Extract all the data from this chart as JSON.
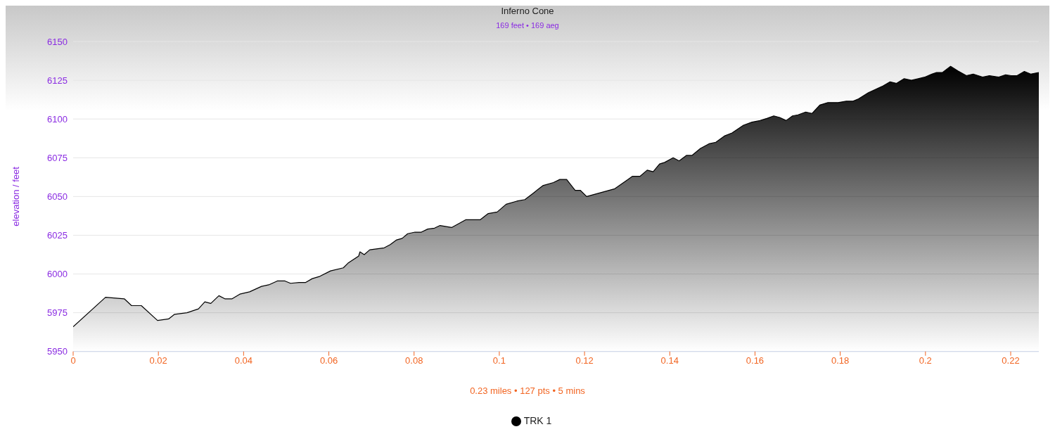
{
  "chart_data": {
    "type": "area",
    "title": "Inferno Cone",
    "subtitle": "169 feet • 169 aeg",
    "xlabel": "0.23 miles • 127 pts • 5 mins",
    "ylabel": "elevation / feet",
    "x": [
      0,
      0.0076,
      0.012,
      0.0137,
      0.016,
      0.0198,
      0.0224,
      0.0238,
      0.0267,
      0.0294,
      0.0309,
      0.0323,
      0.0342,
      0.0356,
      0.0373,
      0.0391,
      0.0414,
      0.0442,
      0.0459,
      0.0479,
      0.0497,
      0.051,
      0.053,
      0.0545,
      0.0561,
      0.0579,
      0.0604,
      0.0634,
      0.0645,
      0.067,
      0.0673,
      0.0683,
      0.0696,
      0.073,
      0.0744,
      0.0759,
      0.0772,
      0.0785,
      0.0802,
      0.0817,
      0.0832,
      0.0848,
      0.0861,
      0.0888,
      0.0921,
      0.0955,
      0.0974,
      0.0995,
      0.1016,
      0.1041,
      0.106,
      0.1079,
      0.1102,
      0.1127,
      0.1142,
      0.1158,
      0.1178,
      0.119,
      0.1205,
      0.1271,
      0.1297,
      0.1312,
      0.133,
      0.1347,
      0.1361,
      0.1376,
      0.1388,
      0.1408,
      0.1422,
      0.1439,
      0.1452,
      0.1472,
      0.1492,
      0.1508,
      0.1528,
      0.1546,
      0.1573,
      0.1593,
      0.1612,
      0.1629,
      0.1644,
      0.1658,
      0.1673,
      0.1688,
      0.1701,
      0.1719,
      0.1734,
      0.1752,
      0.1771,
      0.1795,
      0.1814,
      0.183,
      0.1843,
      0.1866,
      0.1898,
      0.1917,
      0.1932,
      0.195,
      0.1967,
      0.1983,
      0.1998,
      0.2015,
      0.2026,
      0.204,
      0.2059,
      0.2076,
      0.2096,
      0.2112,
      0.2134,
      0.215,
      0.2172,
      0.2188,
      0.2201,
      0.2215,
      0.2232,
      0.2247,
      0.2266
    ],
    "series": [
      {
        "name": "TRK 1",
        "color": "#000000",
        "values": [
          5966,
          5985,
          5984,
          5979.6,
          5979.6,
          5970,
          5971,
          5974,
          5975,
          5977.5,
          5982,
          5981,
          5986,
          5984,
          5984,
          5987,
          5988.5,
          5992,
          5993,
          5995.5,
          5995.5,
          5994,
          5994.5,
          5994.5,
          5997,
          5998.5,
          6002,
          6004,
          6007,
          6011.6,
          6014.3,
          6012.5,
          6015.6,
          6016.9,
          6019,
          6022,
          6023,
          6026,
          6027,
          6027,
          6029,
          6029.6,
          6031.3,
          6030,
          6035,
          6035,
          6039,
          6040,
          6045,
          6047,
          6048,
          6052,
          6057,
          6059,
          6061,
          6061,
          6054,
          6054,
          6050,
          6055,
          6060,
          6063,
          6063,
          6067,
          6066,
          6071,
          6072,
          6075,
          6073,
          6076.5,
          6076.5,
          6081,
          6084,
          6085,
          6089,
          6091,
          6096,
          6098,
          6099,
          6100.5,
          6102,
          6101,
          6099,
          6102,
          6102.7,
          6104.5,
          6103.6,
          6109,
          6110.6,
          6110.6,
          6111.5,
          6111.5,
          6113,
          6117,
          6121,
          6124,
          6123,
          6126,
          6125,
          6126,
          6127,
          6129,
          6130,
          6130,
          6134,
          6131,
          6128,
          6129,
          6127,
          6128,
          6127,
          6128.5,
          6128,
          6128,
          6130.7,
          6129,
          6130
        ]
      }
    ],
    "xlim": [
      0,
      0.2266
    ],
    "xticks": [
      0,
      0.02,
      0.04,
      0.06,
      0.08,
      0.1,
      0.12,
      0.14,
      0.16,
      0.18,
      0.2,
      0.22
    ],
    "ylim": [
      5950,
      6150
    ],
    "yticks": [
      5950,
      5975,
      6000,
      6025,
      6050,
      6075,
      6100,
      6125,
      6150
    ],
    "grid": "y",
    "legend": "bottom",
    "marker": "none",
    "line_style": "solid"
  }
}
